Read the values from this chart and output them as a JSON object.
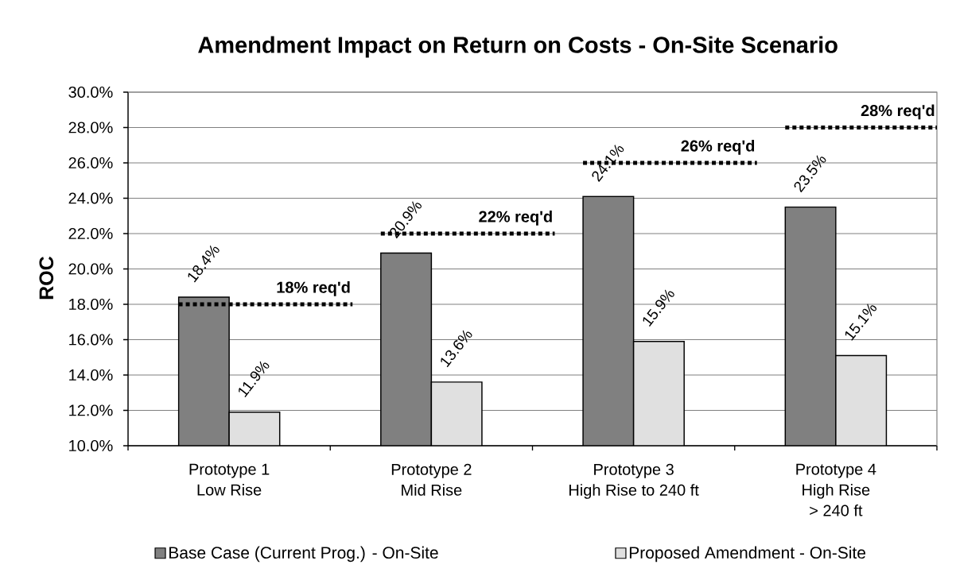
{
  "chart_data": {
    "type": "bar",
    "title": "Amendment Impact on Return on Costs - On-Site Scenario",
    "ylabel": "ROC",
    "categories": [
      "Prototype 1\nLow Rise",
      "Prototype 2\nMid Rise",
      "Prototype 3\nHigh Rise to 240 ft",
      "Prototype 4\nHigh Rise\n> 240 ft"
    ],
    "series": [
      {
        "name": "Base Case (Current Prog.) - On-Site",
        "color": "#808080",
        "values": [
          18.4,
          20.9,
          24.1,
          23.5
        ],
        "value_labels": [
          "18.4%",
          "20.9%",
          "24.1%",
          "23.5%"
        ]
      },
      {
        "name": "Proposed Amendment - On-Site",
        "color": "#e0e0e0",
        "values": [
          11.9,
          13.6,
          15.9,
          15.1
        ],
        "value_labels": [
          "11.9%",
          "13.6%",
          "15.9%",
          "15.1%"
        ]
      }
    ],
    "ylim": [
      10,
      30
    ],
    "yticks": [
      {
        "value": 10,
        "label": "10.0%"
      },
      {
        "value": 12,
        "label": "12.0%"
      },
      {
        "value": 14,
        "label": "14.0%"
      },
      {
        "value": 16,
        "label": "16.0%"
      },
      {
        "value": 18,
        "label": "18.0%"
      },
      {
        "value": 20,
        "label": "20.0%"
      },
      {
        "value": 22,
        "label": "22.0%"
      },
      {
        "value": 24,
        "label": "24.0%"
      },
      {
        "value": 26,
        "label": "26.0%"
      },
      {
        "value": 28,
        "label": "28.0%"
      },
      {
        "value": 30,
        "label": "30.0%"
      }
    ],
    "grid": "y",
    "legend": "bottom",
    "ref_lines": [
      {
        "axis": "y",
        "value": 18,
        "label": "18% req'd",
        "color": "#000000",
        "line_style": "dotted"
      },
      {
        "axis": "y",
        "value": 22,
        "label": "22% req'd",
        "color": "#000000",
        "line_style": "dotted"
      },
      {
        "axis": "y",
        "value": 26,
        "label": "26% req'd",
        "color": "#000000",
        "line_style": "dotted"
      },
      {
        "axis": "y",
        "value": 28,
        "label": "28% req'd",
        "color": "#000000",
        "line_style": "dotted"
      }
    ]
  }
}
